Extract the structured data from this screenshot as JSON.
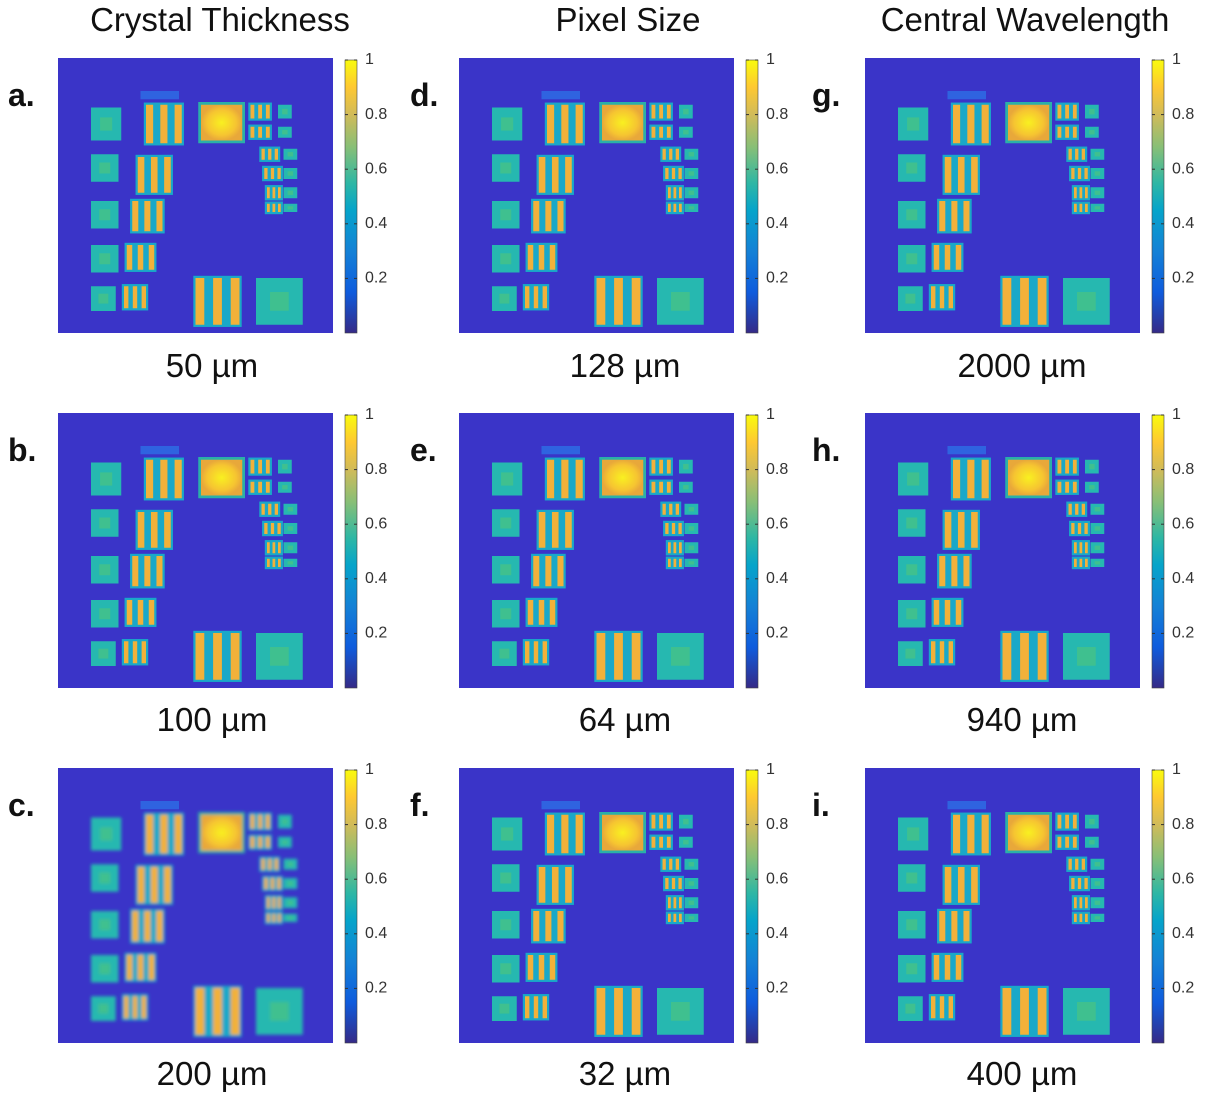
{
  "columns": [
    {
      "title": "Crystal Thickness",
      "panels": [
        {
          "letter": "a.",
          "caption": "50 µm"
        },
        {
          "letter": "b.",
          "caption": "100 µm"
        },
        {
          "letter": "c.",
          "caption": "200 µm"
        }
      ]
    },
    {
      "title": "Pixel Size",
      "panels": [
        {
          "letter": "d.",
          "caption": "128 µm"
        },
        {
          "letter": "e.",
          "caption": "64 µm"
        },
        {
          "letter": "f.",
          "caption": "32 µm"
        }
      ]
    },
    {
      "title": "Central Wavelength",
      "panels": [
        {
          "letter": "g.",
          "caption": "2000 µm"
        },
        {
          "letter": "h.",
          "caption": "940 µm"
        },
        {
          "letter": "i.",
          "caption": "400 µm"
        }
      ]
    }
  ],
  "colorbar": {
    "ticks": [
      0.2,
      0.4,
      0.6,
      0.8,
      1
    ]
  }
}
